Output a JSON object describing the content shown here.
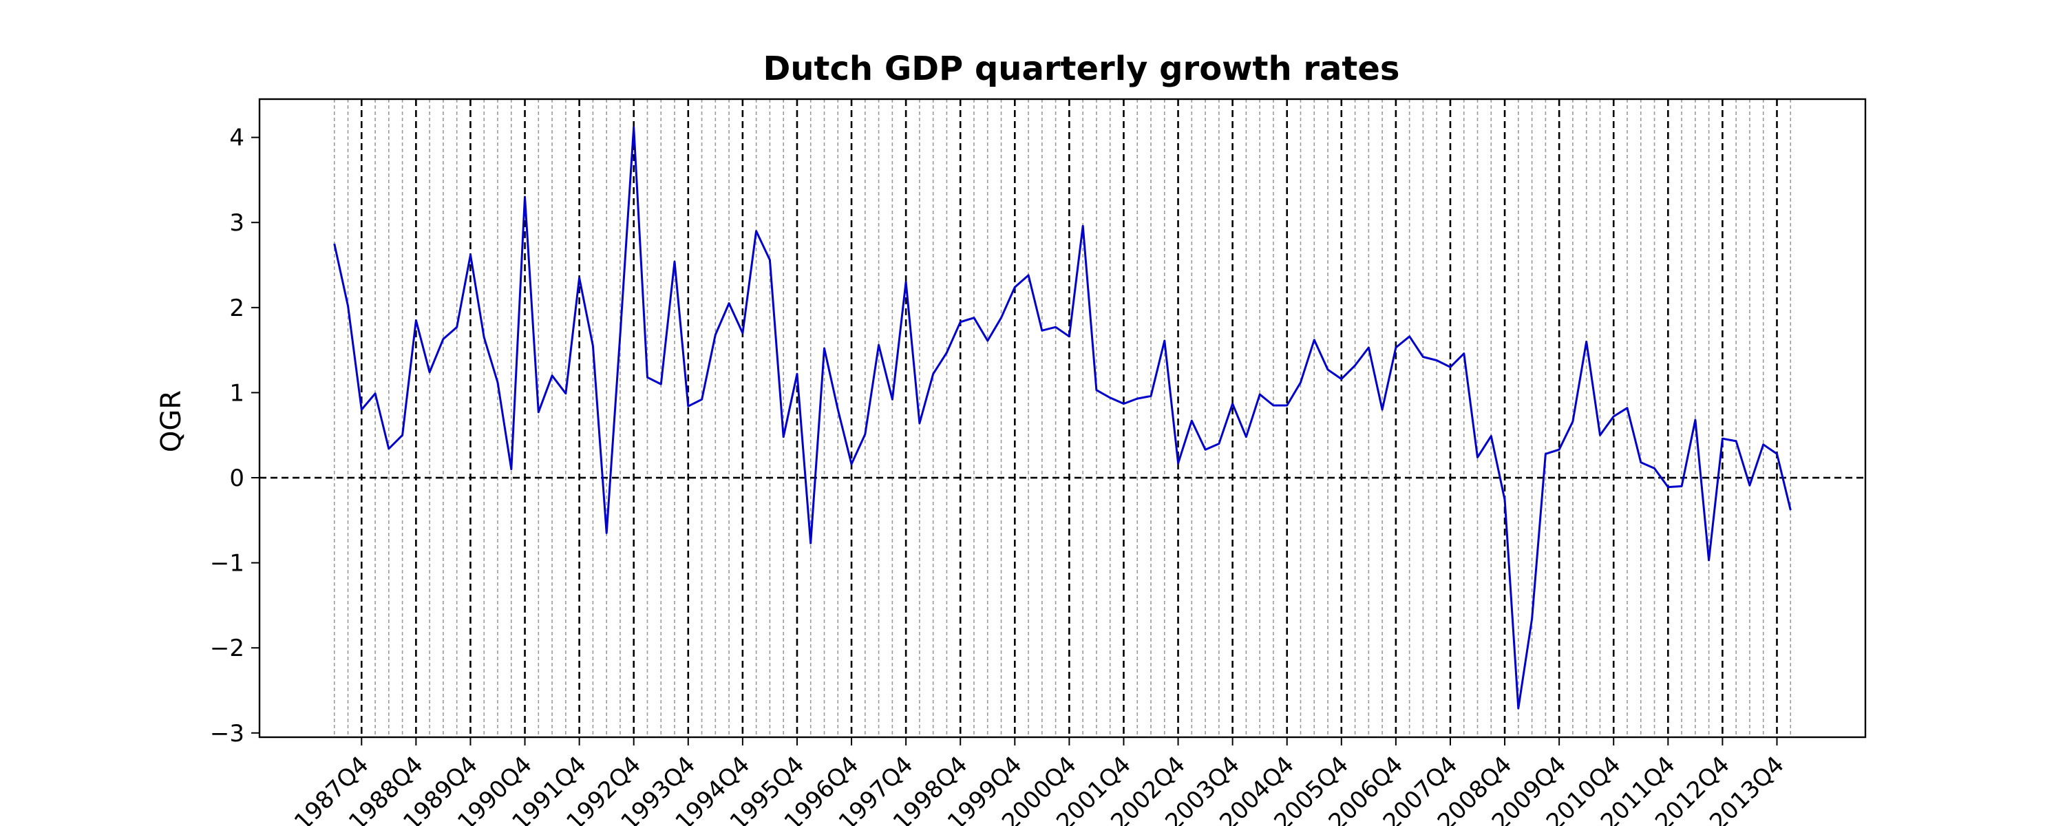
{
  "chart_data": {
    "type": "line",
    "title": "Dutch GDP quarterly growth rates",
    "xlabel": "",
    "ylabel": "QGR",
    "xlim": [
      -5.5,
      112.5
    ],
    "ylim": [
      -3.05,
      4.45
    ],
    "yticks": [
      -3,
      -2,
      -1,
      0,
      1,
      2,
      3,
      4
    ],
    "ytick_labels": [
      "−3",
      "−2",
      "−1",
      "0",
      "1",
      "2",
      "3",
      "4"
    ],
    "first_quarter": "1987Q2",
    "x_tick_labels": [
      "1987Q4",
      "1988Q4",
      "1989Q4",
      "1990Q4",
      "1991Q4",
      "1992Q4",
      "1993Q4",
      "1994Q4",
      "1995Q4",
      "1996Q4",
      "1997Q4",
      "1998Q4",
      "1999Q4",
      "2000Q4",
      "2001Q4",
      "2002Q4",
      "2003Q4",
      "2004Q4",
      "2005Q4",
      "2006Q4",
      "2007Q4",
      "2008Q4",
      "2009Q4",
      "2010Q4",
      "2011Q4",
      "2012Q4",
      "2013Q4"
    ],
    "tick_label_rotation": 45,
    "zero_line": true,
    "quarter_gridlines": "dotted gray at every quarter, dashed black at each Q4",
    "series": [
      {
        "color": "#0000cc",
        "values": [
          2.75,
          2.02,
          0.8,
          0.99,
          0.34,
          0.5,
          1.85,
          1.24,
          1.63,
          1.77,
          2.62,
          1.65,
          1.12,
          0.1,
          3.3,
          0.77,
          1.2,
          0.99,
          2.35,
          1.55,
          -0.65,
          1.67,
          4.12,
          1.18,
          1.1,
          2.54,
          0.84,
          0.92,
          1.68,
          2.05,
          1.7,
          2.9,
          2.56,
          0.48,
          1.22,
          -0.77,
          1.52,
          0.8,
          0.16,
          0.51,
          1.56,
          0.92,
          2.3,
          0.64,
          1.22,
          1.47,
          1.83,
          1.88,
          1.61,
          1.88,
          2.24,
          2.38,
          1.73,
          1.77,
          1.66,
          2.96,
          1.03,
          0.94,
          0.87,
          0.93,
          0.96,
          1.61,
          0.17,
          0.67,
          0.33,
          0.4,
          0.87,
          0.48,
          0.98,
          0.85,
          0.85,
          1.12,
          1.62,
          1.27,
          1.16,
          1.32,
          1.53,
          0.8,
          1.53,
          1.66,
          1.42,
          1.38,
          1.3,
          1.46,
          0.24,
          0.49,
          -0.26,
          -2.71,
          -1.66,
          0.28,
          0.33,
          0.66,
          1.6,
          0.5,
          0.72,
          0.82,
          0.18,
          0.11,
          -0.11,
          -0.1,
          0.68,
          -0.97,
          0.46,
          0.43,
          -0.09,
          0.39,
          0.28,
          -0.38
        ]
      }
    ]
  }
}
